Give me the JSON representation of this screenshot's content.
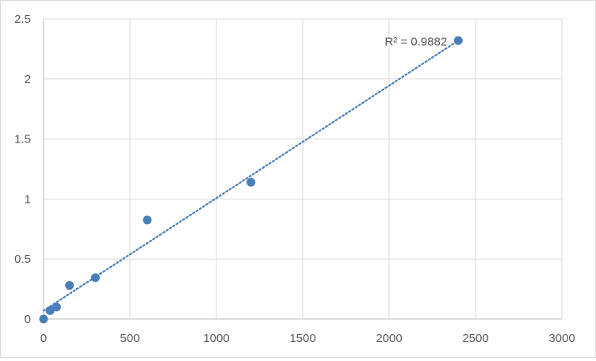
{
  "chart_data": {
    "type": "scatter",
    "title": "",
    "xlabel": "",
    "ylabel": "",
    "xlim": [
      0,
      3000
    ],
    "ylim": [
      0,
      2.5
    ],
    "x_ticks": [
      0,
      500,
      1000,
      1500,
      2000,
      2500,
      3000
    ],
    "y_ticks": [
      0,
      0.5,
      1,
      1.5,
      2,
      2.5
    ],
    "x_tick_labels": [
      "0",
      "500",
      "1000",
      "1500",
      "2000",
      "2500",
      "3000"
    ],
    "y_tick_labels": [
      "0",
      "0.5",
      "1",
      "1.5",
      "2",
      "2.5"
    ],
    "grid": true,
    "legend": "none",
    "series": [
      {
        "x": [
          0,
          37.5,
          75,
          150,
          300,
          600,
          1200,
          2400
        ],
        "y": [
          0,
          0.07,
          0.1,
          0.28,
          0.345,
          0.825,
          1.14,
          2.32
        ],
        "color": "#4a7ebb"
      }
    ],
    "trendline": {
      "type": "linear",
      "x_range": [
        0,
        2400
      ],
      "y_range": [
        0.07,
        2.32
      ],
      "style": "dotted",
      "color": "#4a7ebb"
    },
    "annotations": [
      {
        "text": "R² = 0.9882",
        "x": 2400,
        "y": 2.32
      }
    ]
  }
}
